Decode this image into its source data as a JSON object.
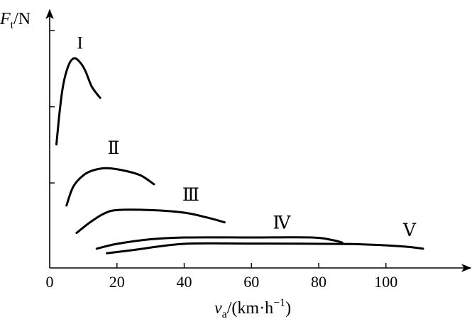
{
  "chart_data": {
    "type": "line",
    "title": "",
    "ylabel": {
      "main": "F",
      "sub": "t",
      "unit": "/N"
    },
    "xlabel": {
      "main": "v",
      "sub": "a",
      "unit_pre": "/(km·h",
      "unit_sup": "−1",
      "unit_post": ")"
    },
    "xlim": [
      0,
      122
    ],
    "ylim": [
      0,
      100
    ],
    "x_ticks": [
      0,
      20,
      40,
      60,
      80,
      100
    ],
    "x_tick_labels": [
      "0",
      "20",
      "40",
      "60",
      "80",
      "100"
    ],
    "y_ticks": [
      33.5,
      63.5,
      93.5
    ],
    "y_tick_labels": [
      "",
      "",
      ""
    ],
    "grid": false,
    "series": [
      {
        "name": "I",
        "label_at": [
          9,
          86.5
        ],
        "points": [
          [
            2,
            48.7
          ],
          [
            3,
            62
          ],
          [
            4,
            72
          ],
          [
            5.5,
            79.5
          ],
          [
            7,
            82.5
          ],
          [
            8.5,
            81.8
          ],
          [
            10.5,
            78
          ],
          [
            12.5,
            71.5
          ],
          [
            15,
            67
          ]
        ]
      },
      {
        "name": "Ⅱ",
        "label_at": [
          19,
          45
        ],
        "points": [
          [
            5,
            24.6
          ],
          [
            7,
            32
          ],
          [
            10,
            36.5
          ],
          [
            13,
            38.5
          ],
          [
            17,
            39.3
          ],
          [
            22,
            38.4
          ],
          [
            27,
            36.5
          ],
          [
            31,
            33
          ]
        ]
      },
      {
        "name": "Ⅲ",
        "label_at": [
          42,
          26.5
        ],
        "points": [
          [
            8,
            13.8
          ],
          [
            12,
            18
          ],
          [
            16,
            21.3
          ],
          [
            20,
            22.8
          ],
          [
            30,
            22.8
          ],
          [
            40,
            21.8
          ],
          [
            47,
            19.8
          ],
          [
            52,
            18
          ]
        ]
      },
      {
        "name": "Ⅳ",
        "label_at": [
          69,
          15.5
        ],
        "points": [
          [
            14,
            7.6
          ],
          [
            20,
            9.5
          ],
          [
            30,
            11.3
          ],
          [
            40,
            12
          ],
          [
            60,
            12
          ],
          [
            78,
            12
          ],
          [
            84,
            11
          ],
          [
            87,
            10
          ]
        ]
      },
      {
        "name": "Ⅴ",
        "label_at": [
          107,
          12.6
        ],
        "points": [
          [
            17,
            5.8
          ],
          [
            25,
            7.1
          ],
          [
            40,
            9.5
          ],
          [
            60,
            9.6
          ],
          [
            90,
            9.4
          ],
          [
            105,
            8.5
          ],
          [
            111,
            7.6
          ]
        ]
      }
    ]
  }
}
